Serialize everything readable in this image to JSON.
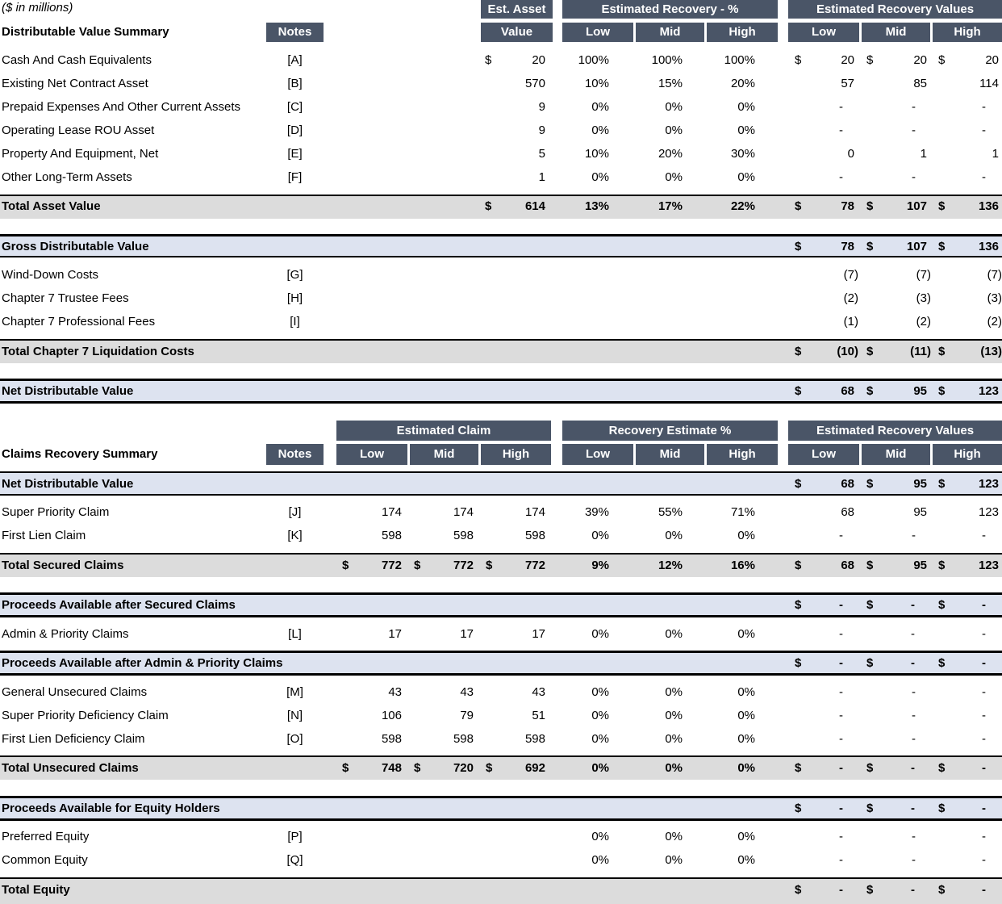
{
  "units_label": "($ in millions)",
  "dv": {
    "title": "Distributable Value Summary",
    "notes_header": "Notes",
    "est_asset_header_top": "Est. Asset",
    "est_asset_header_bottom": "Value",
    "recovery_pct_header": "Estimated Recovery - %",
    "recovery_val_header": "Estimated Recovery Values",
    "low": "Low",
    "mid": "Mid",
    "high": "High",
    "rows": [
      {
        "label": "Cash And Cash Equivalents",
        "note": "[A]",
        "d1": "$",
        "value": "20",
        "p": [
          "100%",
          "100%",
          "100%"
        ],
        "v": [
          "20",
          "20",
          "20"
        ],
        "dv": true
      },
      {
        "label": "Existing Net Contract Asset",
        "note": "[B]",
        "d1": "",
        "value": "570",
        "p": [
          "10%",
          "15%",
          "20%"
        ],
        "v": [
          "57",
          "85",
          "114"
        ],
        "dv": false
      },
      {
        "label": "Prepaid Expenses And Other Current Assets",
        "note": "[C]",
        "d1": "",
        "value": "9",
        "p": [
          "0%",
          "0%",
          "0%"
        ],
        "v": [
          "-",
          "-",
          "-"
        ],
        "dv": false
      },
      {
        "label": "Operating Lease ROU Asset",
        "note": "[D]",
        "d1": "",
        "value": "9",
        "p": [
          "0%",
          "0%",
          "0%"
        ],
        "v": [
          "-",
          "-",
          "-"
        ],
        "dv": false
      },
      {
        "label": "Property And Equipment, Net",
        "note": "[E]",
        "d1": "",
        "value": "5",
        "p": [
          "10%",
          "20%",
          "30%"
        ],
        "v": [
          "0",
          "1",
          "1"
        ],
        "dv": false
      },
      {
        "label": "Other Long-Term Assets",
        "note": "[F]",
        "d1": "",
        "value": "1",
        "p": [
          "0%",
          "0%",
          "0%"
        ],
        "v": [
          "-",
          "-",
          "-"
        ],
        "dv": false
      }
    ],
    "total_asset": {
      "label": "Total Asset Value",
      "d1": "$",
      "value": "614",
      "p": [
        "13%",
        "17%",
        "22%"
      ],
      "v": [
        "78",
        "107",
        "136"
      ]
    },
    "gross": {
      "label": "Gross Distributable Value",
      "v": [
        "78",
        "107",
        "136"
      ]
    },
    "costs": [
      {
        "label": "Wind-Down Costs",
        "note": "[G]",
        "v": [
          "(7)",
          "(7)",
          "(7)"
        ]
      },
      {
        "label": "Chapter 7 Trustee Fees",
        "note": "[H]",
        "v": [
          "(2)",
          "(3)",
          "(3)"
        ]
      },
      {
        "label": "Chapter 7 Professional Fees",
        "note": "[I]",
        "v": [
          "(1)",
          "(2)",
          "(2)"
        ]
      }
    ],
    "total_costs": {
      "label": "Total Chapter 7 Liquidation Costs",
      "v": [
        "(10)",
        "(11)",
        "(13)"
      ]
    },
    "net": {
      "label": "Net Distributable Value",
      "v": [
        "68",
        "95",
        "123"
      ]
    }
  },
  "cr": {
    "title": "Claims Recovery Summary",
    "notes_header": "Notes",
    "claim_header": "Estimated Claim",
    "recovery_pct_header": "Recovery Estimate %",
    "recovery_val_header": "Estimated Recovery Values",
    "low": "Low",
    "mid": "Mid",
    "high": "High",
    "net": {
      "label": "Net Distributable Value",
      "v": [
        "68",
        "95",
        "123"
      ]
    },
    "secured": [
      {
        "label": "Super Priority Claim",
        "note": "[J]",
        "c": [
          "174",
          "174",
          "174"
        ],
        "p": [
          "39%",
          "55%",
          "71%"
        ],
        "v": [
          "68",
          "95",
          "123"
        ]
      },
      {
        "label": "First Lien Claim",
        "note": "[K]",
        "c": [
          "598",
          "598",
          "598"
        ],
        "p": [
          "0%",
          "0%",
          "0%"
        ],
        "v": [
          "-",
          "-",
          "-"
        ]
      }
    ],
    "total_secured": {
      "label": "Total Secured Claims",
      "c": [
        "772",
        "772",
        "772"
      ],
      "p": [
        "9%",
        "12%",
        "16%"
      ],
      "v": [
        "68",
        "95",
        "123"
      ]
    },
    "after_secured": {
      "label": "Proceeds Available after Secured Claims",
      "v": [
        "-",
        "-",
        "-"
      ]
    },
    "admin": {
      "label": "Admin & Priority Claims",
      "note": "[L]",
      "c": [
        "17",
        "17",
        "17"
      ],
      "p": [
        "0%",
        "0%",
        "0%"
      ],
      "v": [
        "-",
        "-",
        "-"
      ]
    },
    "after_admin": {
      "label": "Proceeds Available after Admin & Priority Claims",
      "v": [
        "-",
        "-",
        "-"
      ]
    },
    "unsecured": [
      {
        "label": "General Unsecured Claims",
        "note": "[M]",
        "c": [
          "43",
          "43",
          "43"
        ],
        "p": [
          "0%",
          "0%",
          "0%"
        ],
        "v": [
          "-",
          "-",
          "-"
        ]
      },
      {
        "label": "Super Priority Deficiency Claim",
        "note": "[N]",
        "c": [
          "106",
          "79",
          "51"
        ],
        "p": [
          "0%",
          "0%",
          "0%"
        ],
        "v": [
          "-",
          "-",
          "-"
        ]
      },
      {
        "label": "First Lien Deficiency Claim",
        "note": "[O]",
        "c": [
          "598",
          "598",
          "598"
        ],
        "p": [
          "0%",
          "0%",
          "0%"
        ],
        "v": [
          "-",
          "-",
          "-"
        ]
      }
    ],
    "total_unsecured": {
      "label": "Total Unsecured Claims",
      "c": [
        "748",
        "720",
        "692"
      ],
      "p": [
        "0%",
        "0%",
        "0%"
      ],
      "v": [
        "-",
        "-",
        "-"
      ]
    },
    "equity_proceeds": {
      "label": "Proceeds Available for Equity Holders",
      "v": [
        "-",
        "-",
        "-"
      ]
    },
    "equity": [
      {
        "label": "Preferred Equity",
        "note": "[P]",
        "p": [
          "0%",
          "0%",
          "0%"
        ],
        "v": [
          "-",
          "-",
          "-"
        ]
      },
      {
        "label": "Common Equity",
        "note": "[Q]",
        "p": [
          "0%",
          "0%",
          "0%"
        ],
        "v": [
          "-",
          "-",
          "-"
        ]
      }
    ],
    "total_equity": {
      "label": "Total Equity",
      "v": [
        "-",
        "-",
        "-"
      ]
    }
  },
  "currency_symbol": "$"
}
